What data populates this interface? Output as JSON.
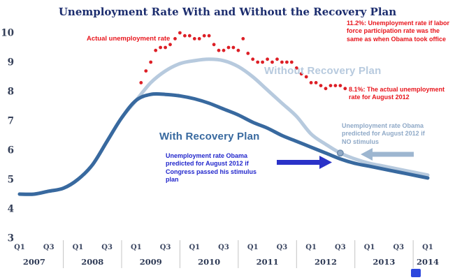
{
  "title": "Unemployment Rate With and Without the Recovery Plan",
  "chart_data": {
    "type": "line",
    "title": "Unemployment Rate With and Without the Recovery Plan",
    "y_axis": {
      "min": 3,
      "max": 10,
      "ticks": [
        10,
        9,
        8,
        7,
        6,
        5,
        4,
        3
      ]
    },
    "x_axis": {
      "quarter_labels": [
        "Q1",
        "Q3",
        "Q1",
        "Q3",
        "Q1",
        "Q3",
        "Q1",
        "Q3",
        "Q1",
        "Q3",
        "Q1",
        "Q3",
        "Q1",
        "Q3",
        "Q1"
      ],
      "years": [
        "2007",
        "2008",
        "2009",
        "2010",
        "2011",
        "2012",
        "2013",
        "2014"
      ]
    },
    "series": [
      {
        "name": "Without Recovery Plan",
        "type": "line",
        "color": "#b7cade",
        "start_quarter": "2007-Q1",
        "quarterly_values": [
          4.5,
          4.5,
          4.6,
          4.7,
          5.0,
          5.5,
          6.3,
          7.1,
          7.7,
          8.3,
          8.7,
          8.95,
          9.05,
          9.1,
          9.05,
          8.85,
          8.5,
          8.05,
          7.6,
          7.15,
          6.55,
          6.2,
          5.9,
          5.7,
          5.55,
          5.45,
          5.35,
          5.25,
          5.15
        ]
      },
      {
        "name": "With Recovery Plan",
        "type": "line",
        "color": "#38699f",
        "start_quarter": "2007-Q1",
        "quarterly_values": [
          4.5,
          4.5,
          4.6,
          4.7,
          5.0,
          5.5,
          6.3,
          7.1,
          7.7,
          7.9,
          7.9,
          7.85,
          7.75,
          7.6,
          7.4,
          7.2,
          6.95,
          6.75,
          6.5,
          6.3,
          6.1,
          5.9,
          5.7,
          5.55,
          5.45,
          5.35,
          5.25,
          5.15,
          5.05
        ]
      },
      {
        "name": "Actual unemployment rate",
        "type": "scatter",
        "color": "#dd1f26",
        "start_month": "2009-02",
        "monthly_values": [
          8.3,
          8.7,
          9.0,
          9.4,
          9.5,
          9.5,
          9.6,
          9.8,
          10.0,
          9.9,
          9.9,
          9.8,
          9.8,
          9.9,
          9.9,
          9.6,
          9.4,
          9.4,
          9.5,
          9.5,
          9.4,
          9.8,
          9.3,
          9.1,
          9.0,
          9.0,
          9.1,
          9.0,
          9.1,
          9.0,
          9.0,
          9.0,
          8.8,
          8.6,
          8.5,
          8.3,
          8.3,
          8.2,
          8.1,
          8.2,
          8.2,
          8.2,
          8.1
        ]
      }
    ],
    "marker": {
      "label": "No-stimulus prediction point for August 2012",
      "quarter_index": 22,
      "value": 5.9
    },
    "annotations": {
      "participation_note": {
        "text": "11.2%: Unemployment rate if labor force participation rate was the same as when Obama took office",
        "color": "#e8151c"
      },
      "actual_label": {
        "text": "Actual unemployment rate",
        "color": "#e8151c"
      },
      "actual_aug_note": {
        "text": "8.1%: The actual unemployment rate for August 2012",
        "color": "#e8151c"
      },
      "without_label": {
        "text": "Without Recovery Plan",
        "color": "#b7cade"
      },
      "with_label": {
        "text": "With Recovery Plan",
        "color": "#38699f"
      },
      "no_stimulus_note": {
        "text": "Unemployment rate Obama predicted for August 2012 if NO stimulus",
        "color": "#8fa9c7"
      },
      "stimulus_note": {
        "text": "Unemployment rate Obama predicted for August 2012 if Congress passed his stimulus plan",
        "color": "#2227cc"
      }
    }
  }
}
